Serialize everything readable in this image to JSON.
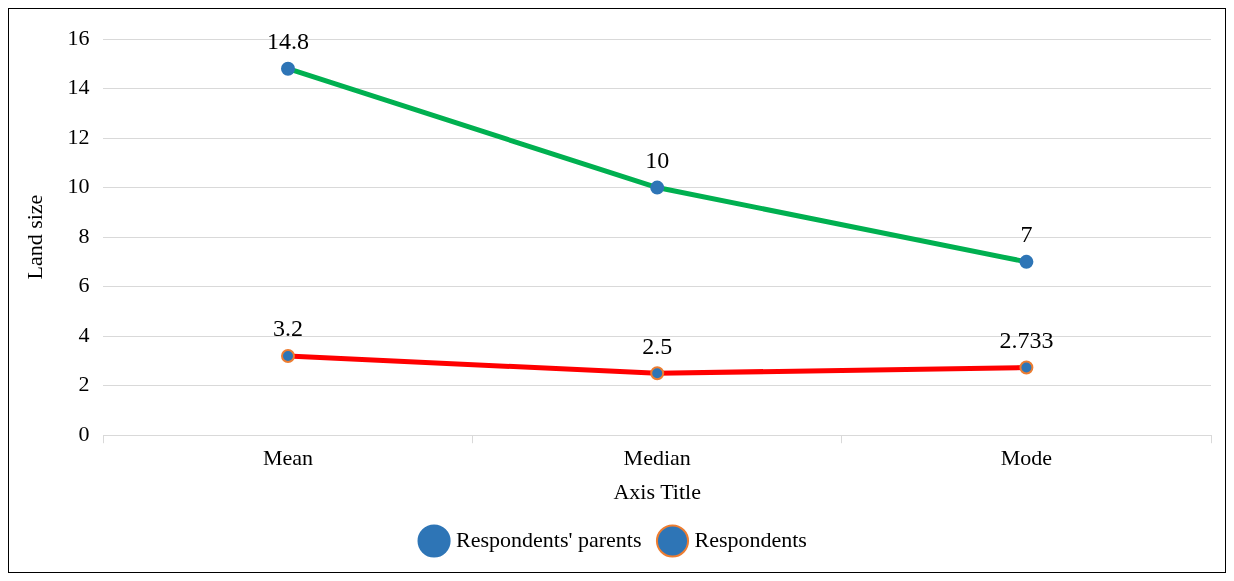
{
  "chart_data": {
    "type": "line",
    "xlabel": "Axis Title",
    "ylabel": "Land size",
    "categories": [
      "Mean",
      "Median",
      "Mode"
    ],
    "series": [
      {
        "name": "Respondents' parents",
        "color": "#00b050",
        "values": [
          14.8,
          10,
          7
        ]
      },
      {
        "name": "Respondents",
        "color": "#ff0000",
        "values": [
          3.2,
          2.5,
          2.733
        ]
      }
    ],
    "ylim": [
      0,
      16
    ],
    "yticks": [
      0,
      2,
      4,
      6,
      8,
      10,
      12,
      14,
      16
    ],
    "grid": "y",
    "legend": "bottom",
    "marker": "circle",
    "line_style": "solid",
    "data_labels": true
  }
}
